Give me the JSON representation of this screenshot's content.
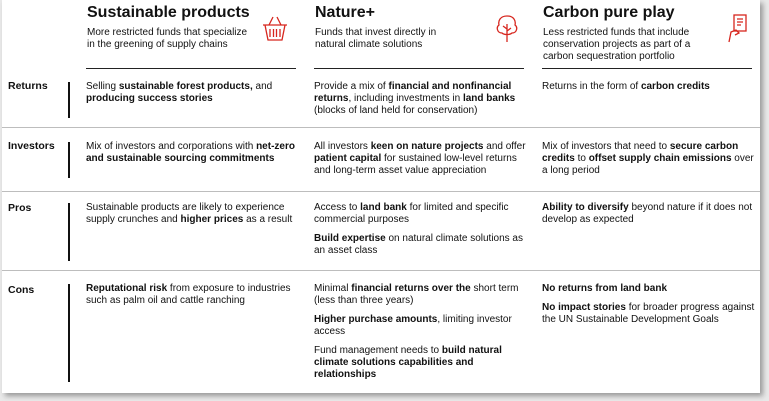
{
  "columns": [
    {
      "title": "Sustainable products",
      "subtitle": "More restricted funds that specialize in the greening of supply chains",
      "icon": "basket-icon"
    },
    {
      "title": "Nature+",
      "subtitle": "Funds that invest directly in natural climate solutions",
      "icon": "tree-icon"
    },
    {
      "title": "Carbon pure play",
      "subtitle": "Less restricted funds that include conservation projects as part of a carbon sequestration portfolio",
      "icon": "hand-certificate-icon"
    }
  ],
  "rows": [
    {
      "label": "Returns",
      "cells": [
        [
          [
            [
              "Selling ",
              false
            ],
            [
              "sustainable forest products,",
              true
            ],
            [
              " and ",
              false
            ],
            [
              "producing success stories",
              true
            ]
          ]
        ],
        [
          [
            [
              "Provide a mix of ",
              false
            ],
            [
              "financial and nonfinancial returns",
              true
            ],
            [
              ", including investments in ",
              false
            ],
            [
              "land banks",
              true
            ],
            [
              " (blocks of land held for conservation)",
              false
            ]
          ]
        ],
        [
          [
            [
              "Returns in the form of ",
              false
            ],
            [
              "carbon credits",
              true
            ]
          ]
        ]
      ]
    },
    {
      "label": "Investors",
      "cells": [
        [
          [
            [
              "Mix of investors and corporations with ",
              false
            ],
            [
              "net-zero and sustainable sourcing commitments",
              true
            ]
          ]
        ],
        [
          [
            [
              "All investors ",
              false
            ],
            [
              "keen on nature projects",
              true
            ],
            [
              " and offer ",
              false
            ],
            [
              "patient capital",
              true
            ],
            [
              " for sustained low-level returns and long-term asset value appreciation",
              false
            ]
          ]
        ],
        [
          [
            [
              "Mix of investors that need to ",
              false
            ],
            [
              "secure carbon credits",
              true
            ],
            [
              " to ",
              false
            ],
            [
              "offset supply chain emissions",
              true
            ],
            [
              " over a long period",
              false
            ]
          ]
        ]
      ]
    },
    {
      "label": "Pros",
      "cells": [
        [
          [
            [
              "Sustainable products are likely to experience supply crunches and ",
              false
            ],
            [
              "higher prices",
              true
            ],
            [
              " as a result",
              false
            ]
          ]
        ],
        [
          [
            [
              "Access to ",
              false
            ],
            [
              "land bank",
              true
            ],
            [
              " for limited and specific commercial purposes",
              false
            ]
          ],
          [
            [
              "Build expertise",
              true
            ],
            [
              " on natural climate solutions as an asset class",
              false
            ]
          ]
        ],
        [
          [
            [
              "Ability to diversify",
              true
            ],
            [
              " beyond nature if it does not develop as expected",
              false
            ]
          ]
        ]
      ]
    },
    {
      "label": "Cons",
      "cells": [
        [
          [
            [
              "Reputational risk",
              true
            ],
            [
              " from exposure to industries such as palm oil and cattle ranching",
              false
            ]
          ]
        ],
        [
          [
            [
              "Minimal ",
              false
            ],
            [
              "financial returns over the",
              true
            ],
            [
              " short term (less than three years)",
              false
            ]
          ],
          [
            [
              "Higher purchase amounts",
              true
            ],
            [
              ", limiting investor access",
              false
            ]
          ],
          [
            [
              "Fund management needs to ",
              false
            ],
            [
              "build natural climate solutions capabilities and relationships",
              true
            ]
          ]
        ],
        [
          [
            [
              "No returns from land bank",
              true
            ]
          ],
          [
            [
              "No impact stories",
              true
            ],
            [
              " for broader progress against the UN Sustainable Development Goals",
              false
            ]
          ]
        ]
      ]
    }
  ],
  "colors": {
    "accent": "#d7261e",
    "text": "#111111",
    "separator": "#bdbdbd"
  }
}
